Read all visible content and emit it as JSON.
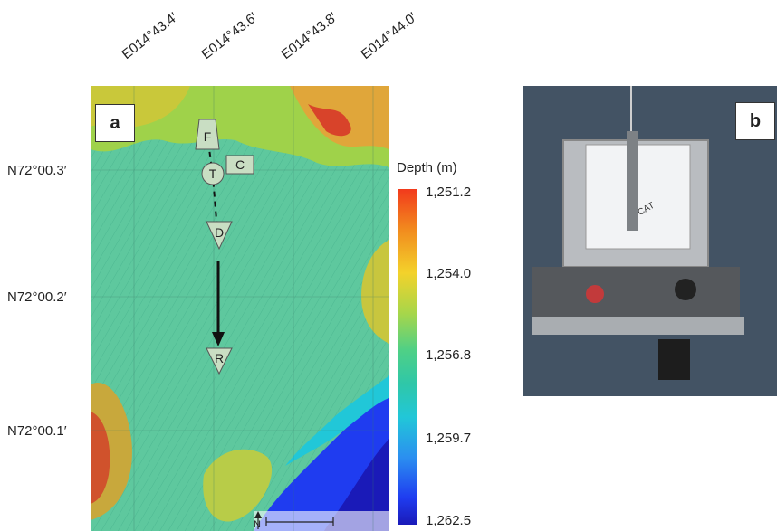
{
  "panel_a": {
    "label": "a",
    "longitude_labels": [
      "E014°43.4′",
      "E014°43.6′",
      "E014°43.8′",
      "E014°44.0′"
    ],
    "latitude_labels": [
      "N72°00.3′",
      "N72°00.2′",
      "N72°00.1′"
    ],
    "markers": {
      "F": "F",
      "T": "T",
      "C": "C",
      "D": "D",
      "R": "R"
    },
    "north_label": "N",
    "legend": {
      "title": "Depth (m)",
      "ticks": [
        "1,251.2",
        "1,254.0",
        "1,256.8",
        "1,259.7",
        "1,262.5"
      ],
      "colors": [
        "#f23a1c",
        "#f3d22b",
        "#4fd086",
        "#21c7d8",
        "#1f3cf0"
      ]
    }
  },
  "panel_b": {
    "label": "b",
    "lander_text": "LOCAT"
  }
}
